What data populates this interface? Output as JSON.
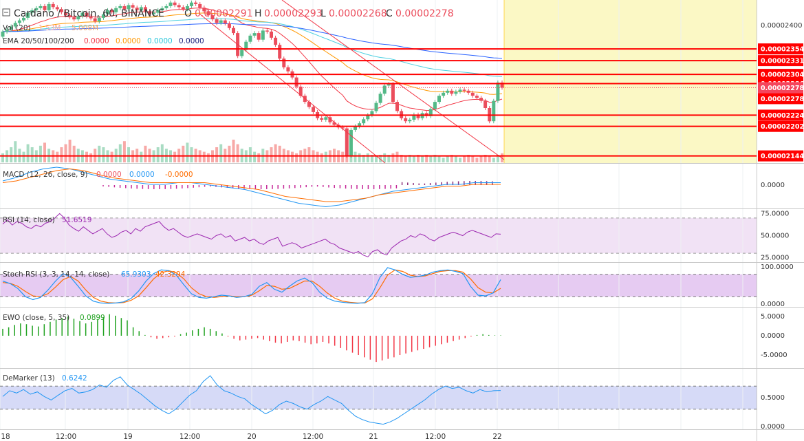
{
  "header": {
    "symbol": "Cardano / Bitcoin, 60, BINANCE",
    "o_label": "O",
    "o_value": "0.00002291",
    "h_label": "H",
    "h_value": "0.00002293",
    "l_label": "L",
    "l_value": "0.00002268",
    "c_label": "C",
    "c_value": "0.00002278"
  },
  "indicators": {
    "vol_label": "Vol (20)",
    "vol_v1": "1.53M",
    "vol_v2": "5.008M",
    "ema_label": "EMA 20/50/100/200",
    "ema_values": [
      "0.0000",
      "0.0000",
      "0.0000",
      "0.0000"
    ],
    "macd_label": "MACD (12, 26, close, 9)",
    "macd_values": [
      "0.0000",
      "0.0000",
      "-0.0000"
    ],
    "rsi_label": "RSI (14, close)",
    "rsi_value": "51.6519",
    "stoch_label": "Stoch RSI (3, 3, 14, 14, close)",
    "stoch_values": [
      "65.9303",
      "42.3294"
    ],
    "ewo_label": "EWO (close, 5, 35)",
    "ewo_value": "0.0899",
    "dem_label": "DeMarker (13)",
    "dem_value": "0.6242"
  },
  "colors": {
    "up": "#53b987",
    "down": "#eb4d5c",
    "level": "#ff0000",
    "ema20": "#f23645",
    "ema50": "#ff9800",
    "ema100": "#4dd0e1",
    "ema200": "#2962ff",
    "macd": "#2196f3",
    "signal": "#ff6d00",
    "rsi": "#9c27b0",
    "band": "#e1bee7",
    "dem": "#2196f3",
    "dem_band": "#d6daf7",
    "future_zone": "#fbf8c5"
  },
  "chart_data": [
    {
      "type": "candlestick",
      "name": "Cardano / Bitcoin, 60, BINANCE",
      "y_ticks": [
        "0.00002400"
      ],
      "levels": [
        "0.00002354",
        "0.00002331",
        "0.00002304",
        "0.00002286",
        "0.00002278",
        "0.00002278",
        "0.00002224",
        "0.00002202",
        "0.00002144"
      ],
      "ohlc_last": {
        "o": 2.291e-05,
        "h": 2.293e-05,
        "l": 2.268e-05,
        "c": 2.278e-05
      },
      "x_ticks": [
        "18",
        "12:00",
        "19",
        "12:00",
        "20",
        "12:00",
        "21",
        "12:00",
        "22"
      ],
      "closes": [
        2.388e-05,
        2.392e-05,
        2.398e-05,
        2.405e-05,
        2.41e-05,
        2.415e-05,
        2.425e-05,
        2.43e-05,
        2.434e-05,
        2.438e-05,
        2.43e-05,
        2.442e-05,
        2.436e-05,
        2.432e-05,
        2.426e-05,
        2.42e-05,
        2.416e-05,
        2.412e-05,
        2.418e-05,
        2.425e-05,
        2.418e-05,
        2.414e-05,
        2.408e-05,
        2.415e-05,
        2.422e-05,
        2.43e-05,
        2.426e-05,
        2.434e-05,
        2.438e-05,
        2.432e-05,
        2.44e-05,
        2.435e-05,
        2.43e-05,
        2.436e-05,
        2.428e-05,
        2.422e-05,
        2.425e-05,
        2.43e-05,
        2.434e-05,
        2.438e-05,
        2.445e-05,
        2.44e-05,
        2.436e-05,
        2.432e-05,
        2.438e-05,
        2.445e-05,
        2.442e-05,
        2.435e-05,
        2.428e-05,
        2.42e-05,
        2.412e-05,
        2.405e-05,
        2.41e-05,
        2.404e-05,
        2.395e-05,
        2.385e-05,
        2.34e-05,
        2.352e-05,
        2.368e-05,
        2.38e-05,
        2.385e-05,
        2.372e-05,
        2.39e-05,
        2.388e-05,
        2.376e-05,
        2.362e-05,
        2.335e-05,
        2.318e-05,
        2.31e-05,
        2.298e-05,
        2.28e-05,
        2.262e-05,
        2.25e-05,
        2.24e-05,
        2.23e-05,
        2.218e-05,
        2.215e-05,
        2.22e-05,
        2.21e-05,
        2.205e-05,
        2.2e-05,
        2.198e-05,
        2.144e-05,
        2.195e-05,
        2.202e-05,
        2.208e-05,
        2.216e-05,
        2.224e-05,
        2.232e-05,
        2.248e-05,
        2.266e-05,
        2.282e-05,
        2.285e-05,
        2.25e-05,
        2.232e-05,
        2.218e-05,
        2.212e-05,
        2.215e-05,
        2.225e-05,
        2.218e-05,
        2.228e-05,
        2.222e-05,
        2.236e-05,
        2.25e-05,
        2.262e-05,
        2.268e-05,
        2.272e-05,
        2.266e-05,
        2.27e-05,
        2.274e-05,
        2.272e-05,
        2.268e-05,
        2.262e-05,
        2.258e-05,
        2.252e-05,
        2.238e-05,
        2.212e-05,
        2.252e-05,
        2.288e-05,
        2.278e-05
      ],
      "volume": [
        6,
        8,
        10,
        14,
        9,
        7,
        12,
        10,
        8,
        11,
        13,
        9,
        8,
        7,
        10,
        12,
        15,
        11,
        9,
        8,
        7,
        6,
        9,
        11,
        10,
        8,
        7,
        9,
        12,
        14,
        10,
        8,
        9,
        7,
        11,
        9,
        8,
        10,
        12,
        9,
        8,
        7,
        9,
        11,
        13,
        10,
        9,
        8,
        7,
        6,
        8,
        10,
        12,
        9,
        11,
        15,
        12,
        9,
        8,
        10,
        7,
        6,
        9,
        8,
        10,
        12,
        11,
        9,
        8,
        7,
        6,
        8,
        9,
        10,
        8,
        7,
        6,
        7,
        8,
        9,
        8,
        7,
        14,
        9,
        7,
        6,
        5,
        6,
        5,
        4,
        5,
        6,
        5,
        6,
        7,
        5,
        4,
        5,
        4,
        5,
        4,
        5,
        4,
        5,
        4,
        3,
        4,
        5,
        4,
        3,
        4,
        5,
        4,
        3,
        4,
        5,
        4,
        3,
        5,
        6
      ]
    },
    {
      "type": "line",
      "name": "MACD (12, 26, close, 9)",
      "y_ticks": [
        "0.0000"
      ],
      "series": [
        {
          "name": "MACD",
          "values": [
            0.0,
            0.0,
            0.0,
            0.0,
            0.0,
            0.0,
            0.0,
            0.0,
            0.0,
            0.0,
            0.0,
            0.0,
            0.0,
            0.0,
            0.0,
            0.0,
            0.0,
            0.0,
            0.0,
            0.0,
            0.0,
            0.0,
            0.0,
            0.0,
            0.0,
            0.0,
            0.0,
            0.0,
            0.0,
            0.0
          ]
        },
        {
          "name": "Signal",
          "values": [
            0.0,
            0.0,
            0.0,
            0.0,
            0.0,
            0.0,
            0.0,
            0.0,
            0.0,
            0.0,
            0.0,
            0.0,
            0.0,
            0.0,
            0.0,
            0.0,
            0.0,
            0.0,
            0.0,
            0.0,
            0.0,
            0.0,
            0.0,
            0.0,
            0.0,
            0.0,
            0.0,
            0.0,
            0.0,
            0.0
          ]
        }
      ]
    },
    {
      "type": "line",
      "name": "RSI (14, close)",
      "y_ticks": [
        "75.0000",
        "50.0000",
        "25.0000"
      ],
      "bands": [
        70,
        30
      ],
      "values": [
        63,
        68,
        62,
        66,
        64,
        60,
        58,
        62,
        60,
        64,
        66,
        70,
        75,
        70,
        62,
        58,
        55,
        60,
        56,
        52,
        55,
        58,
        52,
        48,
        50,
        54,
        56,
        52,
        58,
        55,
        60,
        62,
        64,
        66,
        60,
        56,
        58,
        54,
        50,
        48,
        50,
        52,
        50,
        48,
        46,
        50,
        52,
        48,
        50,
        44,
        46,
        48,
        44,
        46,
        42,
        40,
        44,
        46,
        48,
        38,
        40,
        42,
        40,
        36,
        38,
        40,
        42,
        44,
        46,
        42,
        40,
        36,
        34,
        32,
        30,
        32,
        28,
        26,
        32,
        34,
        30,
        28,
        36,
        40,
        44,
        46,
        50,
        48,
        52,
        50,
        46,
        44,
        48,
        50,
        52,
        54,
        52,
        50,
        54,
        56,
        54,
        52,
        50,
        48,
        52,
        51.65
      ]
    },
    {
      "type": "line",
      "name": "Stoch RSI (3, 3, 14, 14, close)",
      "y_ticks": [
        "100.0000",
        "0.0000"
      ],
      "bands": [
        80,
        20
      ],
      "series": [
        {
          "name": "K",
          "values": [
            62,
            55,
            42,
            20,
            12,
            18,
            38,
            62,
            82,
            72,
            48,
            22,
            8,
            3,
            2,
            3,
            6,
            15,
            35,
            62,
            82,
            92,
            90,
            78,
            52,
            28,
            18,
            16,
            20,
            24,
            22,
            18,
            20,
            26,
            48,
            58,
            40,
            32,
            48,
            62,
            70,
            58,
            32,
            16,
            8,
            5,
            3,
            2,
            4,
            28,
            72,
            98,
            92,
            80,
            72,
            74,
            78,
            86,
            90,
            92,
            88,
            82,
            48,
            24,
            22,
            30,
            65.93
          ]
        },
        {
          "name": "D",
          "values": [
            58,
            56,
            48,
            34,
            22,
            20,
            28,
            46,
            66,
            74,
            62,
            38,
            18,
            8,
            4,
            3,
            4,
            10,
            22,
            44,
            68,
            84,
            90,
            84,
            68,
            44,
            28,
            20,
            18,
            20,
            22,
            20,
            20,
            24,
            36,
            50,
            48,
            40,
            42,
            52,
            62,
            62,
            48,
            30,
            16,
            8,
            5,
            3,
            3,
            14,
            44,
            78,
            92,
            88,
            78,
            74,
            76,
            82,
            88,
            90,
            90,
            86,
            68,
            44,
            32,
            30,
            42.33
          ]
        }
      ]
    },
    {
      "type": "bar",
      "name": "EWO (close, 5, 35)",
      "y_ticks": [
        "5.0000",
        "0.0000",
        "-5.0000"
      ],
      "values": [
        1.8,
        2.2,
        2.8,
        3.2,
        3.0,
        2.6,
        2.4,
        3.0,
        3.6,
        4.2,
        4.6,
        5.0,
        4.4,
        3.8,
        3.2,
        3.6,
        4.2,
        4.8,
        5.6,
        5.2,
        4.6,
        4.0,
        2.2,
        1.2,
        0.2,
        -0.4,
        -0.8,
        -0.6,
        -0.4,
        -0.2,
        0.4,
        0.8,
        1.4,
        1.8,
        2.2,
        1.8,
        1.2,
        0.6,
        -0.2,
        -0.8,
        -1.2,
        -1.0,
        -0.8,
        -0.6,
        -1.0,
        -1.4,
        -1.8,
        -2.0,
        -1.6,
        -1.2,
        -1.4,
        -1.8,
        -2.2,
        -2.0,
        -1.6,
        -2.0,
        -2.6,
        -3.2,
        -3.8,
        -4.4,
        -5.0,
        -5.6,
        -6.2,
        -6.8,
        -6.4,
        -6.0,
        -5.6,
        -5.0,
        -4.6,
        -4.2,
        -3.8,
        -3.4,
        -3.0,
        -2.6,
        -2.2,
        -1.8,
        -1.4,
        -1.0,
        -0.6,
        -0.2,
        0.2,
        0.4,
        0.2,
        0.1,
        0.09
      ]
    },
    {
      "type": "line",
      "name": "DeMarker (13)",
      "y_ticks": [
        "0.5000",
        "0.0000"
      ],
      "bands": [
        0.7,
        0.3
      ],
      "values": [
        0.52,
        0.62,
        0.58,
        0.64,
        0.56,
        0.6,
        0.52,
        0.46,
        0.54,
        0.62,
        0.66,
        0.58,
        0.6,
        0.64,
        0.72,
        0.68,
        0.8,
        0.86,
        0.72,
        0.64,
        0.56,
        0.46,
        0.36,
        0.28,
        0.22,
        0.3,
        0.42,
        0.54,
        0.62,
        0.78,
        0.88,
        0.72,
        0.62,
        0.58,
        0.52,
        0.48,
        0.38,
        0.3,
        0.22,
        0.28,
        0.38,
        0.44,
        0.4,
        0.34,
        0.3,
        0.38,
        0.44,
        0.52,
        0.46,
        0.4,
        0.28,
        0.18,
        0.12,
        0.08,
        0.06,
        0.04,
        0.08,
        0.14,
        0.22,
        0.3,
        0.38,
        0.46,
        0.56,
        0.64,
        0.7,
        0.66,
        0.68,
        0.62,
        0.58,
        0.64,
        0.6,
        0.62,
        0.6242
      ]
    }
  ]
}
